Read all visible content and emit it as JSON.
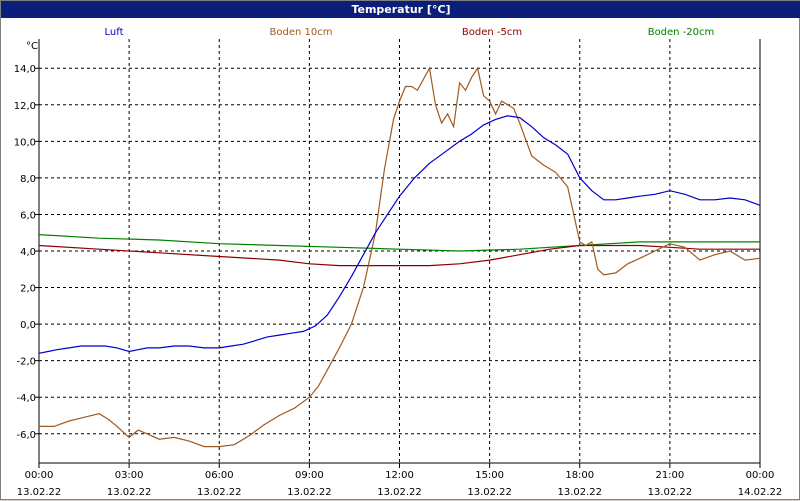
{
  "window": {
    "title": "Temperatur [°C]"
  },
  "chart_data": {
    "type": "line",
    "title": "Temperatur [°C]",
    "ylabel": "°C",
    "ylim": [
      -7.6,
      15.6
    ],
    "yticks": [
      "14,0",
      "12,0",
      "10,0",
      "8,0",
      "6,0",
      "4,0",
      "2,0",
      "0,0",
      "-2,0",
      "-4,0",
      "-6,0"
    ],
    "ytick_values": [
      14,
      12,
      10,
      8,
      6,
      4,
      2,
      0,
      -2,
      -4,
      -6
    ],
    "xlim": [
      0,
      24
    ],
    "xticks": [
      {
        "time": "00:00",
        "date": "13.02.22",
        "h": 0
      },
      {
        "time": "03:00",
        "date": "13.02.22",
        "h": 3
      },
      {
        "time": "06:00",
        "date": "13.02.22",
        "h": 6
      },
      {
        "time": "09:00",
        "date": "13.02.22",
        "h": 9
      },
      {
        "time": "12:00",
        "date": "13.02.22",
        "h": 12
      },
      {
        "time": "15:00",
        "date": "13.02.22",
        "h": 15
      },
      {
        "time": "18:00",
        "date": "13.02.22",
        "h": 18
      },
      {
        "time": "21:00",
        "date": "13.02.22",
        "h": 21
      },
      {
        "time": "00:00",
        "date": "14.02.22",
        "h": 24
      }
    ],
    "grid": true,
    "legend": {
      "placement": "top"
    },
    "series": [
      {
        "name": "Luft",
        "color": "#0000cc",
        "x": [
          0,
          0.3,
          0.6,
          1,
          1.4,
          1.8,
          2.2,
          2.6,
          3,
          3.3,
          3.6,
          4,
          4.5,
          5,
          5.5,
          6,
          6.4,
          6.8,
          7.2,
          7.6,
          8,
          8.4,
          8.8,
          9.2,
          9.6,
          10,
          10.4,
          10.8,
          11.2,
          11.6,
          12,
          12.5,
          13,
          13.5,
          14,
          14.4,
          14.8,
          15.2,
          15.6,
          16,
          16.4,
          16.8,
          17.2,
          17.6,
          18,
          18.4,
          18.8,
          19.2,
          19.6,
          20,
          20.5,
          21,
          21.5,
          22,
          22.5,
          23,
          23.5,
          24
        ],
        "y": [
          -1.6,
          -1.5,
          -1.4,
          -1.3,
          -1.2,
          -1.2,
          -1.2,
          -1.3,
          -1.5,
          -1.4,
          -1.3,
          -1.3,
          -1.2,
          -1.2,
          -1.3,
          -1.3,
          -1.2,
          -1.1,
          -0.9,
          -0.7,
          -0.6,
          -0.5,
          -0.4,
          -0.1,
          0.5,
          1.5,
          2.6,
          3.8,
          5.0,
          6.0,
          7.0,
          8.0,
          8.8,
          9.4,
          10.0,
          10.4,
          10.9,
          11.2,
          11.4,
          11.3,
          10.8,
          10.2,
          9.8,
          9.3,
          8.0,
          7.3,
          6.8,
          6.8,
          6.9,
          7.0,
          7.1,
          7.3,
          7.1,
          6.8,
          6.8,
          6.9,
          6.8,
          6.5
        ]
      },
      {
        "name": "Boden 10cm",
        "color": "#a05a20",
        "x": [
          0,
          0.5,
          1,
          1.5,
          2,
          2.3,
          2.6,
          3,
          3.3,
          3.6,
          4,
          4.5,
          5,
          5.5,
          6,
          6.5,
          7,
          7.5,
          8,
          8.5,
          9,
          9.3,
          9.6,
          10,
          10.4,
          10.8,
          11.2,
          11.5,
          11.8,
          12,
          12.2,
          12.4,
          12.6,
          12.8,
          13,
          13.2,
          13.4,
          13.6,
          13.8,
          14,
          14.2,
          14.4,
          14.6,
          14.8,
          15,
          15.2,
          15.4,
          15.6,
          15.8,
          16,
          16.4,
          16.8,
          17.2,
          17.6,
          18,
          18.2,
          18.4,
          18.6,
          18.8,
          19.2,
          19.6,
          20,
          20.5,
          21,
          21.5,
          22,
          22.5,
          23,
          23.5,
          24
        ],
        "y": [
          -5.6,
          -5.6,
          -5.3,
          -5.1,
          -4.9,
          -5.2,
          -5.6,
          -6.2,
          -5.8,
          -6.0,
          -6.3,
          -6.2,
          -6.4,
          -6.7,
          -6.7,
          -6.6,
          -6.1,
          -5.5,
          -5.0,
          -4.6,
          -4.0,
          -3.4,
          -2.5,
          -1.3,
          0.0,
          2.0,
          5.0,
          8.5,
          11.2,
          12.2,
          13.0,
          13.0,
          12.8,
          13.4,
          14.0,
          12.0,
          11.0,
          11.5,
          10.8,
          13.2,
          12.8,
          13.5,
          14.0,
          12.5,
          12.2,
          11.5,
          12.2,
          12.0,
          11.8,
          11.0,
          9.2,
          8.7,
          8.3,
          7.5,
          4.5,
          4.3,
          4.5,
          3.0,
          2.7,
          2.8,
          3.3,
          3.6,
          4.0,
          4.4,
          4.2,
          3.5,
          3.8,
          4.0,
          3.5,
          3.6
        ]
      },
      {
        "name": "Boden -5cm",
        "color": "#8b0000",
        "x": [
          0,
          2,
          4,
          6,
          8,
          9,
          10,
          11,
          12,
          13,
          14,
          15,
          16,
          17,
          18,
          19,
          20,
          21,
          22,
          23,
          24
        ],
        "y": [
          4.3,
          4.1,
          3.9,
          3.7,
          3.5,
          3.3,
          3.2,
          3.2,
          3.2,
          3.2,
          3.3,
          3.5,
          3.8,
          4.1,
          4.3,
          4.3,
          4.3,
          4.2,
          4.1,
          4.1,
          4.1
        ]
      },
      {
        "name": "Boden -20cm",
        "color": "#008000",
        "x": [
          0,
          2,
          4,
          6,
          8,
          10,
          12,
          14,
          16,
          17,
          18,
          19,
          20,
          22,
          24
        ],
        "y": [
          4.9,
          4.7,
          4.6,
          4.4,
          4.3,
          4.2,
          4.1,
          4.0,
          4.1,
          4.2,
          4.3,
          4.4,
          4.5,
          4.5,
          4.5
        ]
      }
    ]
  }
}
